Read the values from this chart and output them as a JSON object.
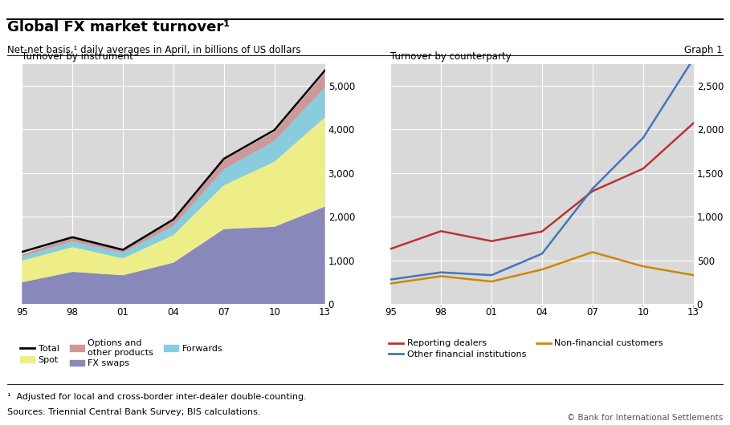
{
  "title": "Global FX market turnover¹",
  "subtitle": "Net-net basis,¹ daily averages in April, in billions of US dollars",
  "graph_label": "Graph 1",
  "footnote1": "¹  Adjusted for local and cross-border inter-dealer double-counting.",
  "footnote2": "Sources: Triennial Central Bank Survey; BIS calculations.",
  "copyright": "© Bank for International Settlements",
  "left_title": "Turnover by instrument",
  "right_title": "Turnover by counterparty",
  "years": [
    1995,
    1998,
    2001,
    2004,
    2007,
    2010,
    2013
  ],
  "year_labels": [
    "95",
    "98",
    "01",
    "04",
    "07",
    "10",
    "13"
  ],
  "fx_swaps": [
    494,
    734,
    656,
    944,
    1714,
    1765,
    2228
  ],
  "spot": [
    494,
    568,
    387,
    631,
    1005,
    1490,
    2046
  ],
  "forwards": [
    97,
    128,
    131,
    208,
    362,
    475,
    680
  ],
  "options": [
    41,
    87,
    60,
    117,
    212,
    207,
    337
  ],
  "total": [
    1190,
    1527,
    1239,
    1934,
    3324,
    3981,
    5345
  ],
  "reporting_dealers": [
    630,
    833,
    719,
    829,
    1291,
    1548,
    2070
  ],
  "other_financial_institutions": [
    279,
    361,
    329,
    575,
    1319,
    1900,
    2809
  ],
  "non_financial_customers": [
    233,
    317,
    256,
    394,
    593,
    430,
    329
  ],
  "left_ylim": [
    0,
    5500
  ],
  "left_yticks": [
    0,
    1000,
    2000,
    3000,
    4000,
    5000
  ],
  "right_ylim": [
    0,
    2750
  ],
  "right_yticks": [
    0,
    500,
    1000,
    1500,
    2000,
    2500
  ],
  "color_fx_swaps": "#8888bb",
  "color_spot": "#eeee88",
  "color_forwards": "#88ccdd",
  "color_options": "#cc9999",
  "color_total": "#000000",
  "color_reporting": "#bb3333",
  "color_other_fi": "#4477bb",
  "color_non_financial": "#cc8800",
  "bg_color": "#d9d9d9",
  "fig_bg": "#ffffff"
}
